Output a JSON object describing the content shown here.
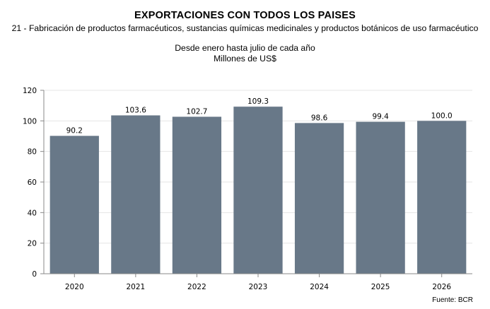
{
  "header": {
    "title": "EXPORTACIONES CON TODOS LOS PAISES",
    "subtitle": "21 - Fabricación de productos farmacéuticos, sustancias químicas medicinales y productos botánicos de uso farmacéutico",
    "period": "Desde enero hasta julio de cada año",
    "units": "Millones de US$"
  },
  "footer": {
    "source": "Fuente: BCR"
  },
  "chart_data": {
    "type": "bar",
    "title": "EXPORTACIONES CON TODOS LOS PAISES",
    "categories": [
      "2020",
      "2021",
      "2022",
      "2023",
      "2024",
      "2025",
      "2026"
    ],
    "values": [
      90.2,
      103.6,
      102.7,
      109.3,
      98.6,
      99.4,
      100.0
    ],
    "value_labels": [
      "90.2",
      "103.6",
      "102.7",
      "109.3",
      "98.6",
      "99.4",
      "100.0"
    ],
    "ylim": [
      0,
      120
    ],
    "yticks": [
      "0",
      "20",
      "40",
      "60",
      "80",
      "100",
      "120"
    ],
    "ytick_values": [
      0,
      20,
      40,
      60,
      80,
      100,
      120
    ],
    "xlabel": "",
    "ylabel": "",
    "bar_color": "#687888",
    "grid": true
  }
}
